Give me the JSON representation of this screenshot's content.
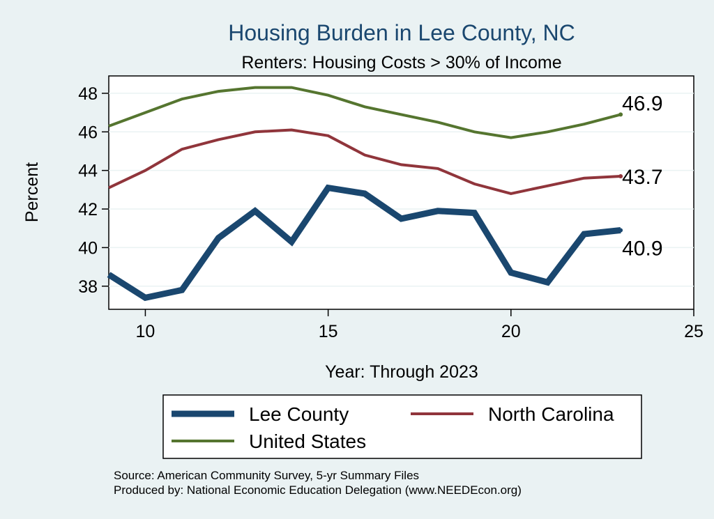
{
  "chart_data": {
    "type": "line",
    "title": "Housing Burden in Lee County, NC",
    "subtitle": "Renters: Housing Costs > 30% of Income",
    "xlabel": "Year: Through 2023",
    "ylabel": "Percent",
    "xlim": [
      9,
      25
    ],
    "ylim": [
      36.8,
      48.9
    ],
    "xticks": [
      10,
      15,
      20,
      25
    ],
    "yticks": [
      38,
      40,
      42,
      44,
      46,
      48
    ],
    "grid": true,
    "legend_position": "bottom",
    "x": [
      9,
      10,
      11,
      12,
      13,
      14,
      15,
      16,
      17,
      18,
      19,
      20,
      21,
      22,
      23
    ],
    "series": [
      {
        "name": "Lee County",
        "color": "#1a476f",
        "values": [
          38.6,
          37.4,
          37.8,
          40.5,
          41.9,
          40.3,
          43.1,
          42.8,
          41.5,
          41.9,
          41.8,
          38.7,
          38.2,
          40.7,
          40.9
        ],
        "end_label": "40.9"
      },
      {
        "name": "North Carolina",
        "color": "#90353b",
        "values": [
          43.1,
          44.0,
          45.1,
          45.6,
          46.0,
          46.1,
          45.8,
          44.8,
          44.3,
          44.1,
          43.3,
          42.8,
          43.2,
          43.6,
          43.7
        ],
        "end_label": "43.7"
      },
      {
        "name": "United States",
        "color": "#55752f",
        "values": [
          46.3,
          47.0,
          47.7,
          48.1,
          48.3,
          48.3,
          47.9,
          47.3,
          46.9,
          46.5,
          46.0,
          45.7,
          46.0,
          46.4,
          46.9
        ],
        "end_label": "46.9"
      }
    ],
    "notes": [
      "Source: American Community Survey, 5-yr Summary Files",
      "Produced by: National Economic Education Delegation (www.NEEDEcon.org)"
    ]
  }
}
